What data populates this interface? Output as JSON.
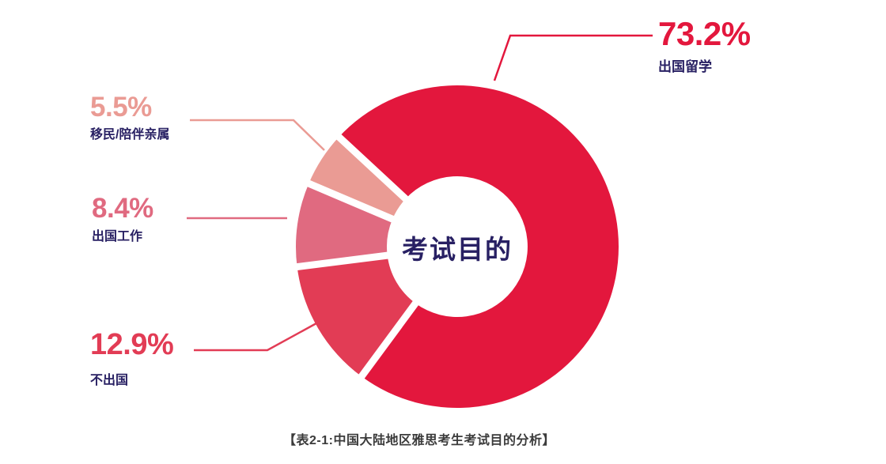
{
  "chart_data": {
    "type": "pie",
    "subtype": "donut",
    "center_label": "考试目的",
    "caption": "【表2-1:中国大陆地区雅思考生考试目的分析】",
    "unit": "%",
    "direction": "clockwise",
    "start_angle_deg": 312.84,
    "legend_position": "callout-labels",
    "segments": [
      {
        "label": "出国留学",
        "value": 73.2,
        "color": "#E3173D"
      },
      {
        "label": "不出国",
        "value": 12.9,
        "color": "#E23C55"
      },
      {
        "label": "出国工作",
        "value": 8.4,
        "color": "#E06A80"
      },
      {
        "label": "移民/陪伴亲属",
        "value": 5.5,
        "color": "#EA9B94"
      }
    ]
  },
  "callouts": {
    "study": {
      "pct": "73.2%",
      "label": "出国留学"
    },
    "immigration": {
      "pct": "5.5%",
      "label": "移民/陪伴亲属"
    },
    "work": {
      "pct": "8.4%",
      "label": "出国工作"
    },
    "stay": {
      "pct": "12.9%",
      "label": "不出国"
    }
  },
  "colors": {
    "navy": "#282063",
    "caption_gray": "#3B3B3B",
    "separator": "#FFFFFF"
  }
}
